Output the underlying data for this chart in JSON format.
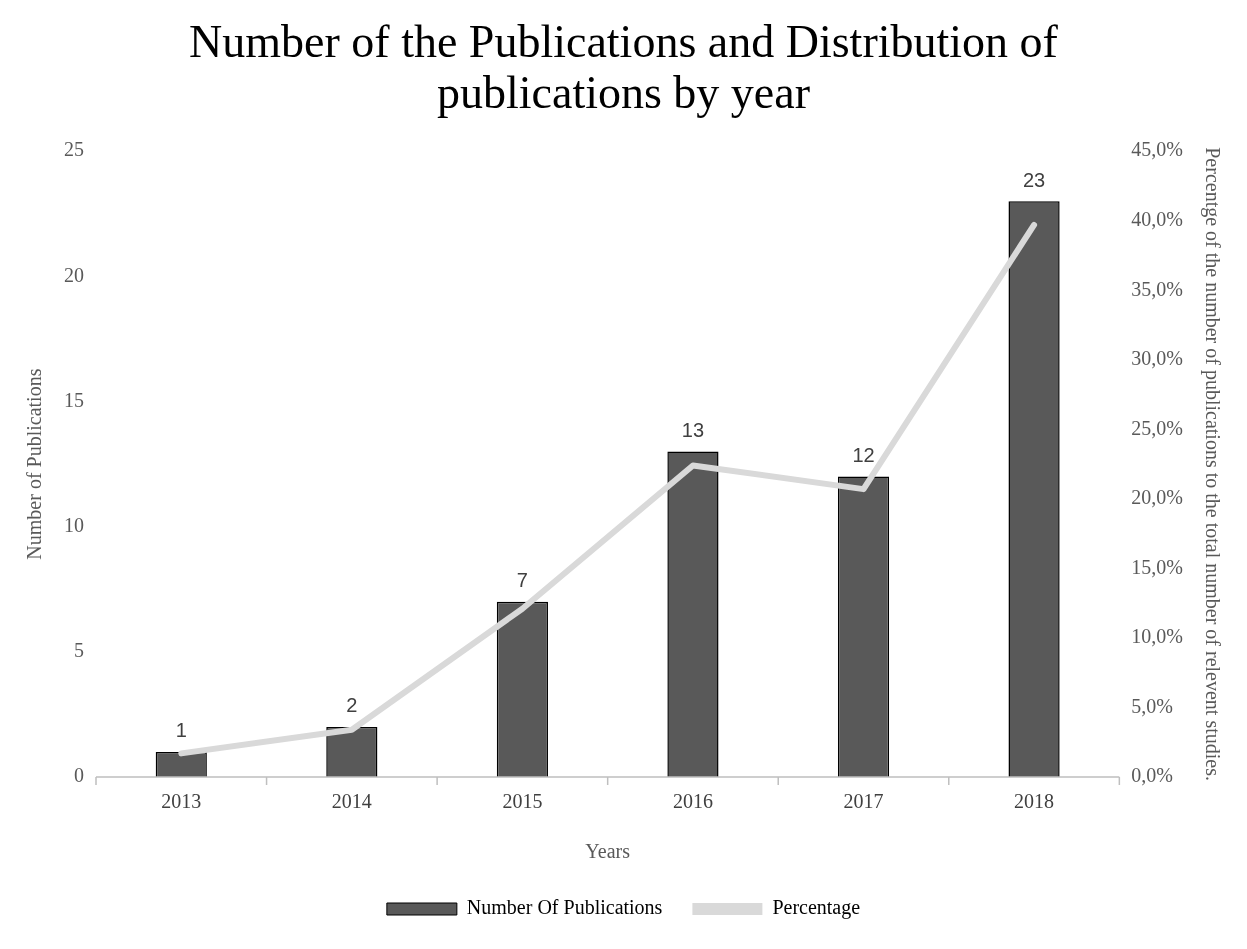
{
  "chart_data": {
    "type": "bar",
    "title": "Number of the Publications and Distribution of publications by year",
    "xlabel": "Years",
    "ylabel": "Number of Publications",
    "y2label": "Percentge of the number of publications to the total number of relevent studies.",
    "categories": [
      "2013",
      "2014",
      "2015",
      "2016",
      "2017",
      "2018"
    ],
    "series": [
      {
        "name": "Number Of Publications",
        "color": "#595959",
        "values": [
          1,
          2,
          7,
          13,
          12,
          23
        ],
        "value_labels": [
          "1",
          "2",
          "7",
          "13",
          "12",
          "23"
        ]
      },
      {
        "name": "Percentage",
        "type": "line",
        "axis": "y2",
        "color": "#d9d9d9",
        "values": [
          1.7,
          3.4,
          12.1,
          22.4,
          20.7,
          39.7
        ],
        "marker": "none",
        "line_style": "solid"
      }
    ],
    "ylim": [
      0,
      25
    ],
    "yticks": [
      0,
      5,
      10,
      15,
      20,
      25
    ],
    "y2lim": [
      0,
      45
    ],
    "y2ticks": [
      {
        "value": 0,
        "label": "0,0%"
      },
      {
        "value": 5,
        "label": "5,0%"
      },
      {
        "value": 10,
        "label": "10,0%"
      },
      {
        "value": 15,
        "label": "15,0%"
      },
      {
        "value": 20,
        "label": "20,0%"
      },
      {
        "value": 25,
        "label": "25,0%"
      },
      {
        "value": 30,
        "label": "30,0%"
      },
      {
        "value": 35,
        "label": "35,0%"
      },
      {
        "value": 40,
        "label": "40,0%"
      },
      {
        "value": 45,
        "label": "45,0%"
      }
    ],
    "grid": false,
    "legend": "bottom"
  }
}
